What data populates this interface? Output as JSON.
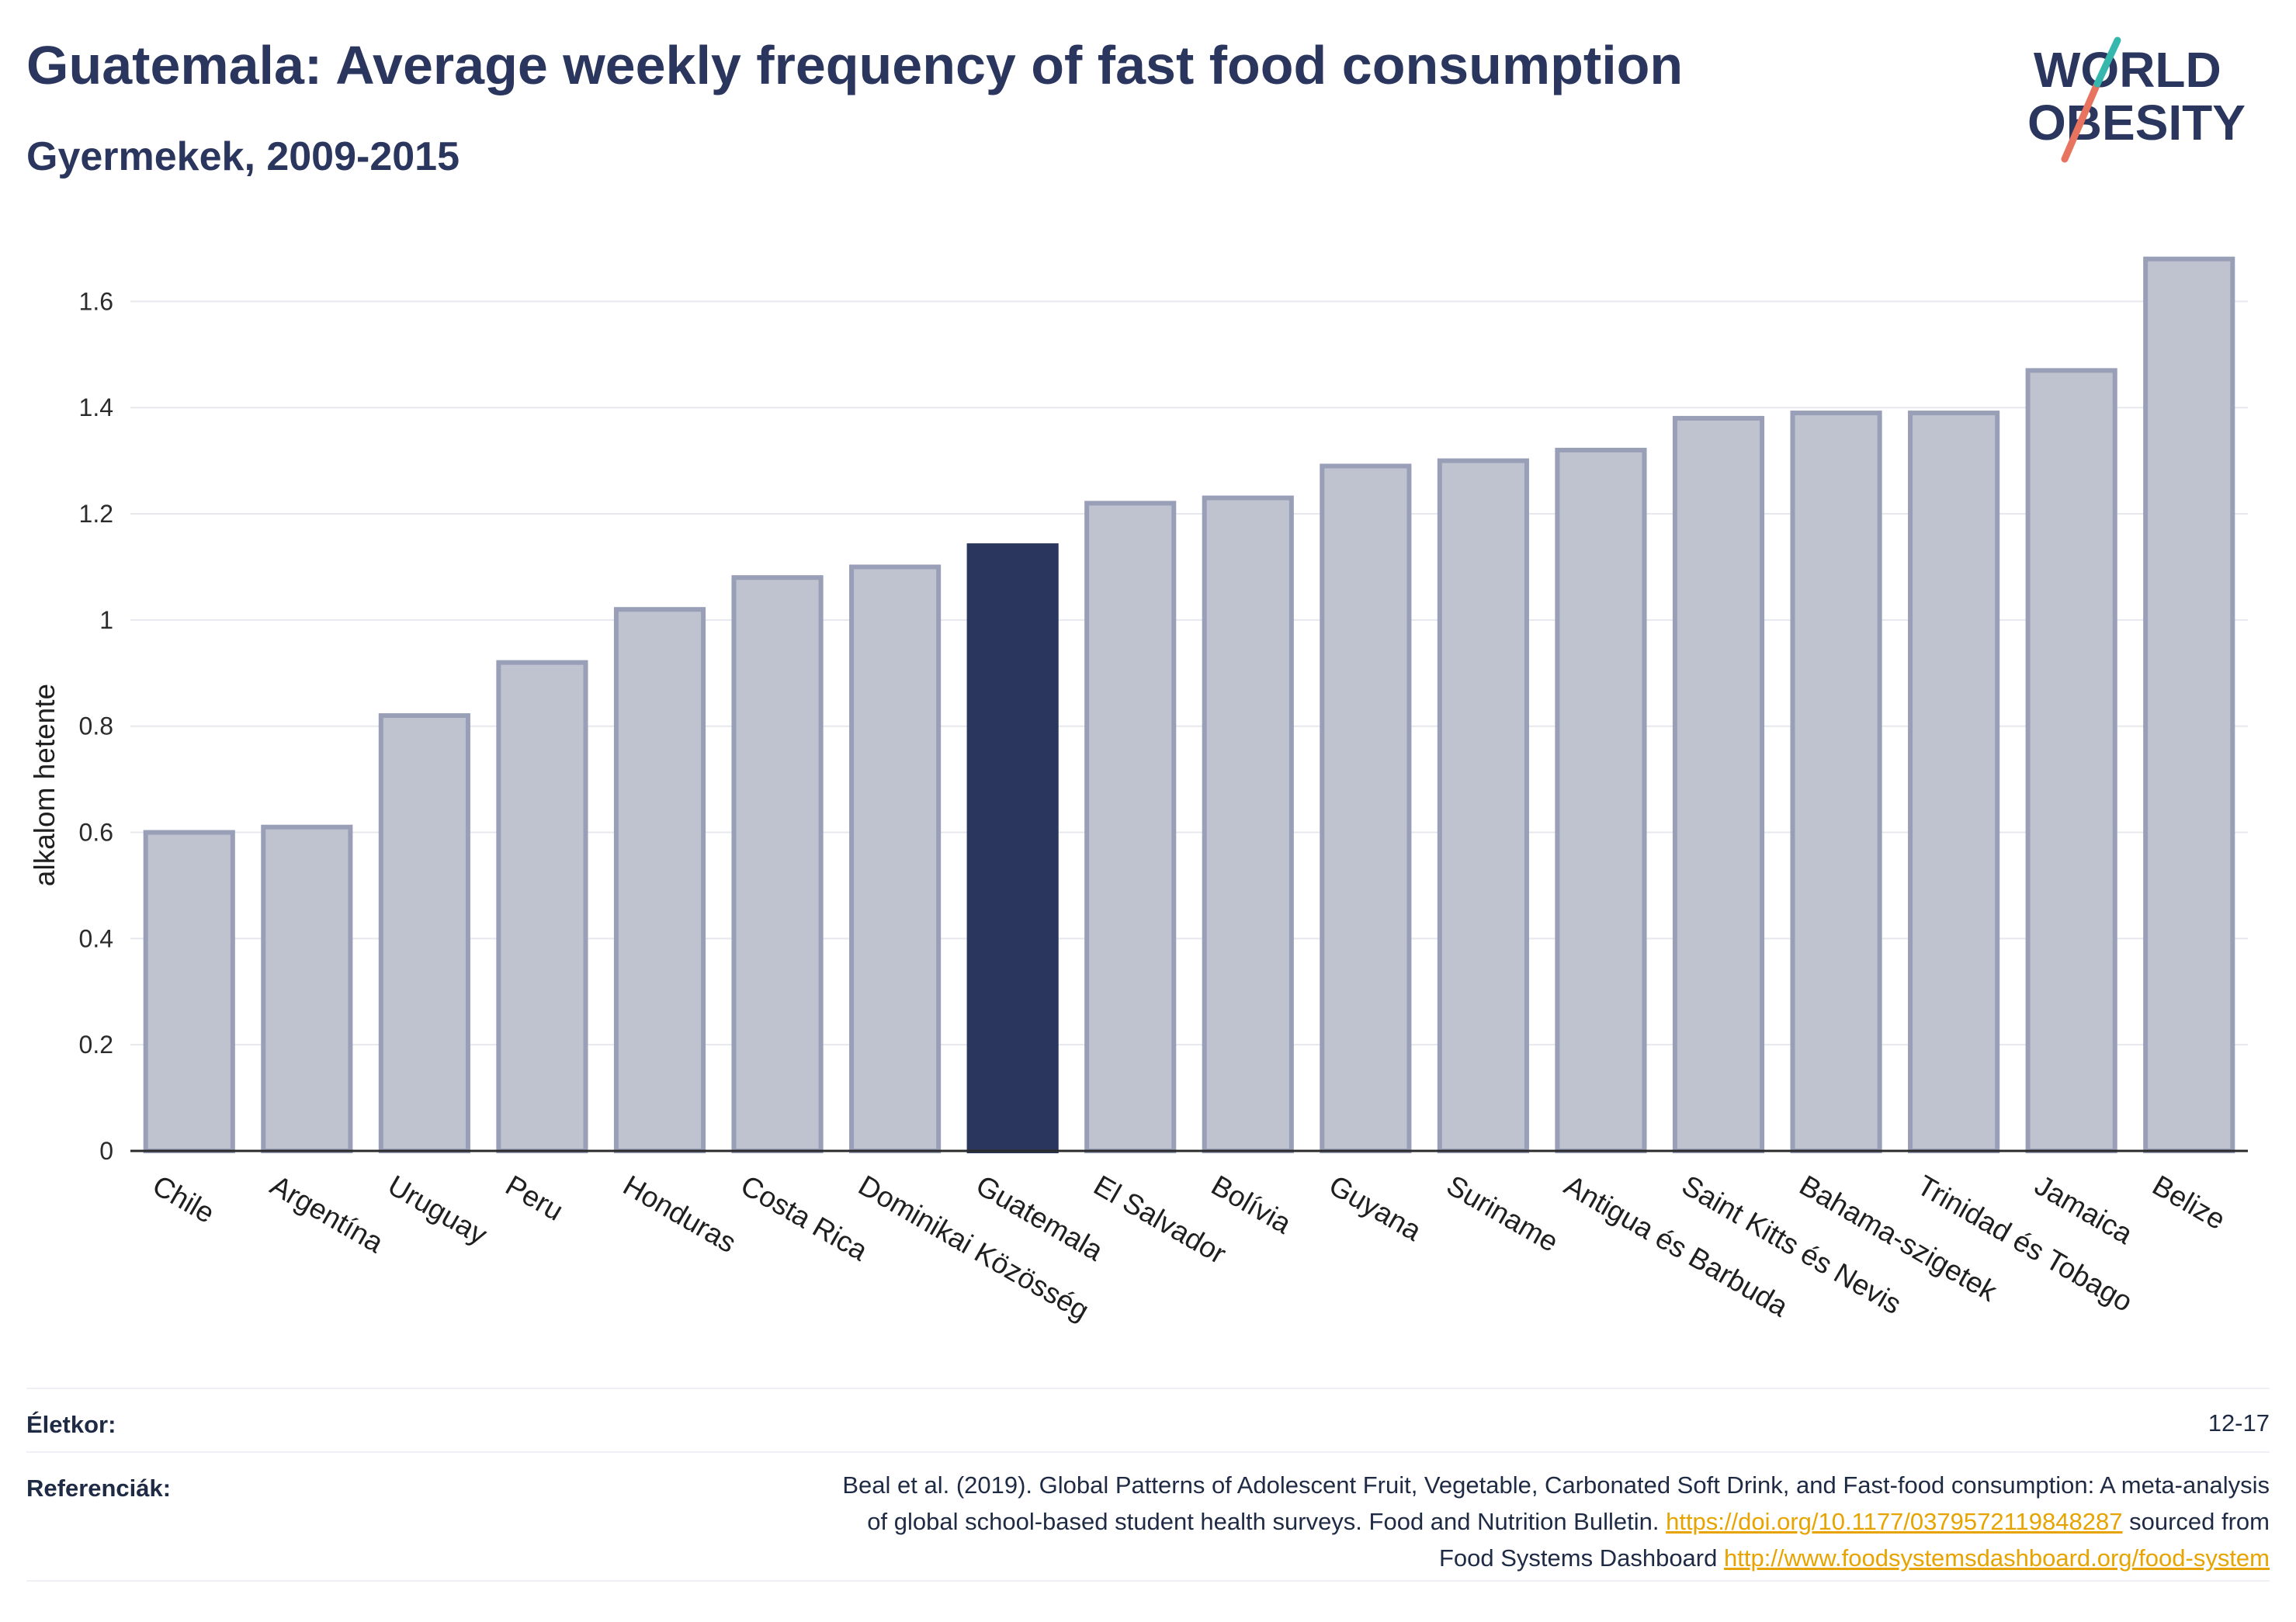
{
  "header": {
    "title": "Guatemala: Average weekly frequency of fast food consumption",
    "subtitle": "Gyermekek, 2009-2015"
  },
  "logo": {
    "line1": "WORLD",
    "line2": "OBESITY"
  },
  "colors": {
    "highlight": "#2b365e",
    "bar": "#bfc2cf",
    "bar_border": "#9a9fb8",
    "axis": "#2b2b2b",
    "grid": "#e6e8ee",
    "link": "#e7a400"
  },
  "chart_data": {
    "type": "bar",
    "ylabel": "alkalom hetente",
    "ylim": [
      0,
      1.7
    ],
    "yticks": [
      0,
      0.2,
      0.4,
      0.6,
      0.8,
      1,
      1.2,
      1.4,
      1.6
    ],
    "ytick_labels": [
      "0",
      "0.2",
      "0.4",
      "0.6",
      "0.8",
      "1",
      "1.2",
      "1.4",
      "1.6"
    ],
    "grid": true,
    "highlight": "Guatemala",
    "categories": [
      "Chile",
      "Argentína",
      "Uruguay",
      "Peru",
      "Honduras",
      "Costa Rica",
      "Dominikai Közösség",
      "Guatemala",
      "El Salvador",
      "Bolívia",
      "Guyana",
      "Suriname",
      "Antigua és Barbuda",
      "Saint Kitts és Nevis",
      "Bahama-szigetek",
      "Trinidad és Tobago",
      "Jamaica",
      "Belize"
    ],
    "values": [
      0.6,
      0.61,
      0.82,
      0.92,
      1.02,
      1.08,
      1.1,
      1.14,
      1.22,
      1.23,
      1.29,
      1.3,
      1.32,
      1.38,
      1.39,
      1.39,
      1.47,
      1.68
    ]
  },
  "footer": {
    "age_label": "Életkor:",
    "age_value": "12-17",
    "ref_label": "Referenciák:",
    "ref_text_1": "Beal et al. (2019). Global Patterns of Adolescent Fruit, Vegetable, Carbonated Soft Drink, and Fast-food consumption: A meta-analysis",
    "ref_text_2": "of global school-based student health surveys. Food and Nutrition Bulletin.",
    "ref_link_1": "https://doi.org/10.1177/0379572119848287",
    "ref_text_3": "sourced from",
    "ref_text_4": "Food Systems Dashboard",
    "ref_link_2": "http://www.foodsystemsdashboard.org/food-system"
  }
}
